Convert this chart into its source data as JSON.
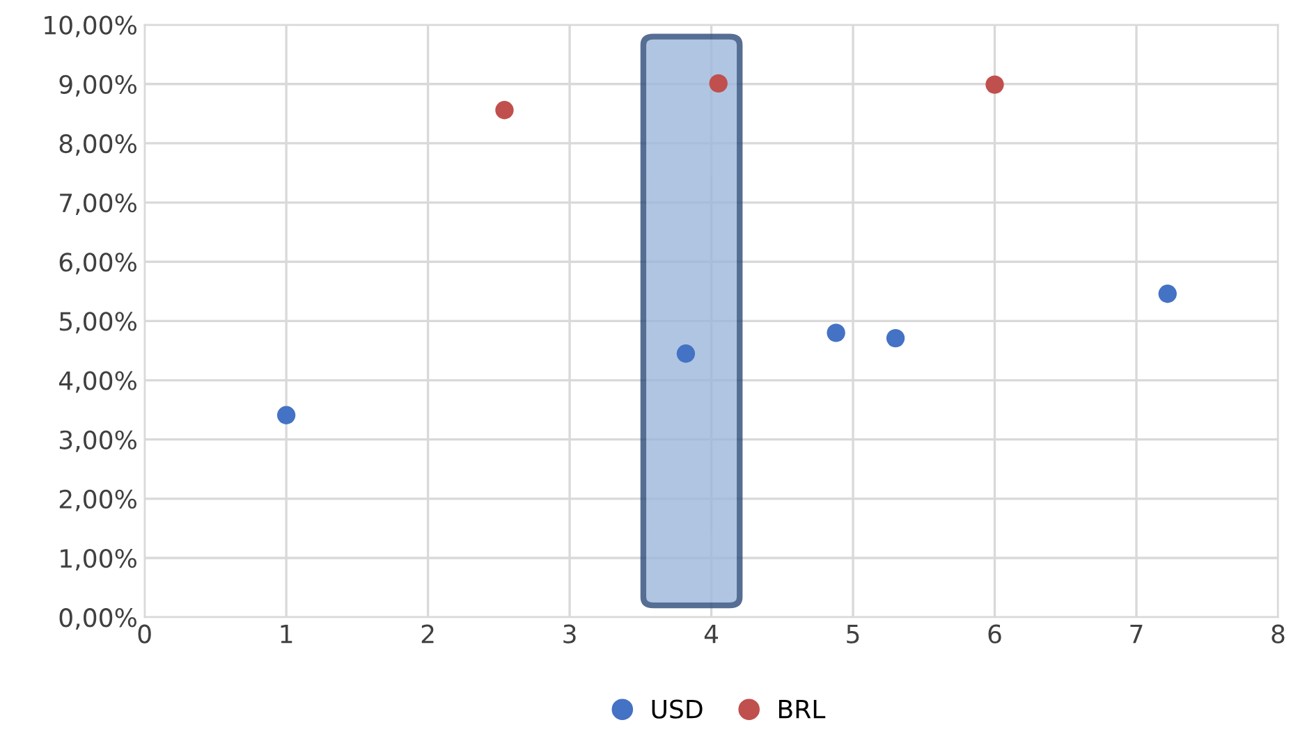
{
  "chart_data": {
    "type": "scatter",
    "series": [
      {
        "name": "USD",
        "color": "#4472c4",
        "x": [
          1.0,
          3.82,
          4.88,
          5.3,
          7.22
        ],
        "values": [
          3.41,
          4.45,
          4.8,
          4.71,
          5.46
        ]
      },
      {
        "name": "BRL",
        "color": "#c0504d",
        "x": [
          2.54,
          4.05,
          6.0
        ],
        "values": [
          8.56,
          9.01,
          8.99
        ]
      }
    ],
    "xlim": [
      0,
      8
    ],
    "xticks": [
      0,
      1,
      2,
      3,
      4,
      5,
      6,
      7,
      8
    ],
    "ylim": [
      0,
      10
    ],
    "yticks": [
      {
        "value": 0,
        "label": "0,00%"
      },
      {
        "value": 1,
        "label": "1,00%"
      },
      {
        "value": 2,
        "label": "2,00%"
      },
      {
        "value": 3,
        "label": "3,00%"
      },
      {
        "value": 4,
        "label": "4,00%"
      },
      {
        "value": 5,
        "label": "5,00%"
      },
      {
        "value": 6,
        "label": "6,00%"
      },
      {
        "value": 7,
        "label": "7,00%"
      },
      {
        "value": 8,
        "label": "8,00%"
      },
      {
        "value": 9,
        "label": "9,00%"
      },
      {
        "value": 10,
        "label": "10,00%"
      }
    ],
    "bands": [
      {
        "axis": "x",
        "from": 3.52,
        "to": 4.2,
        "color": "#9db7db"
      }
    ],
    "grid": true,
    "legend": "bottom",
    "marker": "circle"
  }
}
